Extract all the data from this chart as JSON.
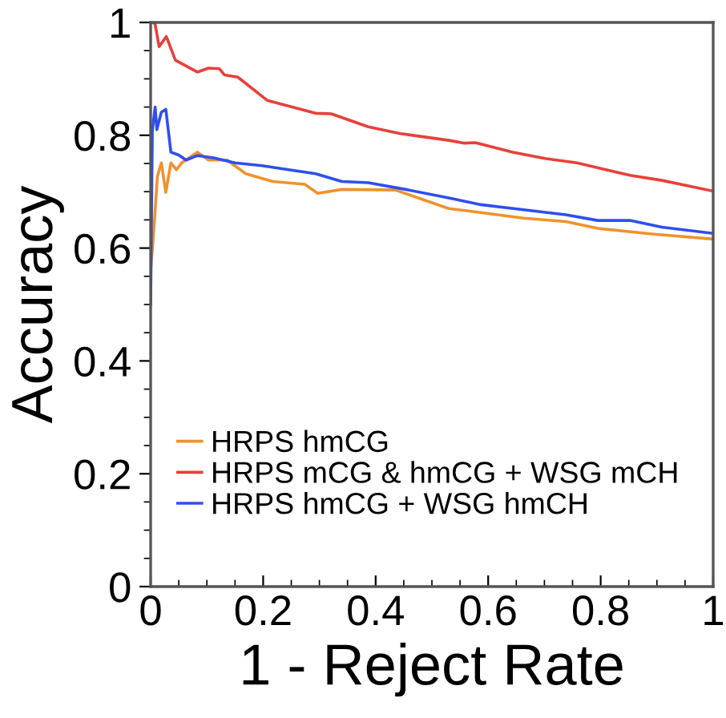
{
  "chart_data": {
    "type": "line",
    "xlabel": "1 - Reject Rate",
    "ylabel": "Accuracy",
    "xlim": [
      0,
      1
    ],
    "ylim": [
      0,
      1
    ],
    "xticks": [
      0,
      0.2,
      0.4,
      0.6,
      0.8,
      1
    ],
    "yticks": [
      0,
      0.2,
      0.4,
      0.6,
      0.8,
      1
    ],
    "grid": false,
    "legend": "bottom left",
    "marker": "none",
    "line_style": "solid",
    "series": [
      {
        "name": "HRPS hmCG",
        "color": "#f0922e",
        "x": [
          0,
          0.006,
          0.012,
          0.019,
          0.027,
          0.036,
          0.046,
          0.055,
          0.083,
          0.103,
          0.136,
          0.169,
          0.217,
          0.274,
          0.297,
          0.34,
          0.435,
          0.53,
          0.587,
          0.663,
          0.738,
          0.795,
          0.891,
          1.0
        ],
        "values": [
          0.56,
          0.637,
          0.727,
          0.751,
          0.699,
          0.751,
          0.739,
          0.751,
          0.77,
          0.756,
          0.756,
          0.732,
          0.718,
          0.713,
          0.697,
          0.704,
          0.703,
          0.67,
          0.663,
          0.653,
          0.647,
          0.635,
          0.625,
          0.616
        ]
      },
      {
        "name": "HRPS mCG & hmCG + WSG mCH",
        "color": "#e8403a",
        "x": [
          0.004,
          0.008,
          0.015,
          0.028,
          0.044,
          0.083,
          0.103,
          0.122,
          0.131,
          0.155,
          0.207,
          0.293,
          0.321,
          0.387,
          0.444,
          0.53,
          0.558,
          0.577,
          0.644,
          0.701,
          0.758,
          0.852,
          0.909,
          1.0
        ],
        "values": [
          1.0,
          0.997,
          0.957,
          0.975,
          0.933,
          0.912,
          0.919,
          0.918,
          0.907,
          0.903,
          0.862,
          0.839,
          0.838,
          0.815,
          0.803,
          0.791,
          0.786,
          0.787,
          0.77,
          0.759,
          0.751,
          0.729,
          0.72,
          0.701
        ]
      },
      {
        "name": "HRPS hmCG + WSG hmCH",
        "color": "#2f4ef0",
        "x": [
          0,
          0.003,
          0.008,
          0.011,
          0.019,
          0.027,
          0.036,
          0.05,
          0.063,
          0.083,
          0.112,
          0.15,
          0.198,
          0.245,
          0.293,
          0.34,
          0.387,
          0.453,
          0.53,
          0.587,
          0.663,
          0.738,
          0.795,
          0.852,
          0.909,
          1.0
        ],
        "values": [
          0.5,
          0.808,
          0.85,
          0.81,
          0.841,
          0.846,
          0.77,
          0.765,
          0.756,
          0.764,
          0.76,
          0.751,
          0.746,
          0.739,
          0.732,
          0.718,
          0.716,
          0.704,
          0.689,
          0.677,
          0.668,
          0.659,
          0.649,
          0.649,
          0.637,
          0.626
        ]
      }
    ]
  }
}
